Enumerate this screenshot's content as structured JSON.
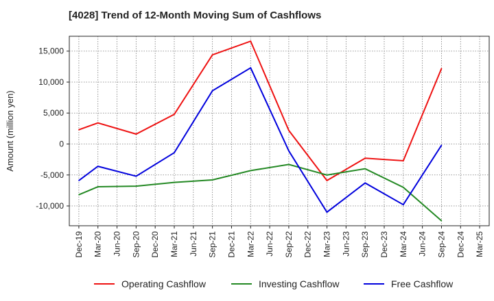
{
  "chart_data": {
    "type": "line",
    "title": "[4028]  Trend of 12-Month Moving Sum of Cashflows",
    "xlabel": "",
    "ylabel": "Amount (million yen)",
    "x": [
      "Dec-19",
      "Mar-20",
      "Jun-20",
      "Sep-20",
      "Dec-20",
      "Mar-21",
      "Jun-21",
      "Sep-21",
      "Dec-21",
      "Mar-22",
      "Jun-22",
      "Sep-22",
      "Dec-22",
      "Mar-23",
      "Jun-23",
      "Sep-23",
      "Dec-23",
      "Mar-24",
      "Jun-24",
      "Sep-24",
      "Dec-24",
      "Mar-25"
    ],
    "ylim": [
      -13200,
      17400
    ],
    "yticks": [
      -10000,
      -5000,
      0,
      5000,
      10000,
      15000
    ],
    "ytick_labels": [
      "-10,000",
      "-5,000",
      "0",
      "5,000",
      "10,000",
      "15,000"
    ],
    "grid": true,
    "legend_position": "bottom",
    "series": [
      {
        "name": "Operating Cashflow",
        "color": "#ee1111",
        "values": [
          2300,
          3400,
          null,
          1600,
          null,
          4800,
          null,
          14400,
          null,
          16600,
          null,
          2200,
          null,
          -5900,
          null,
          -2300,
          null,
          -2700,
          null,
          12200,
          null,
          null
        ]
      },
      {
        "name": "Investing Cashflow",
        "color": "#228822",
        "values": [
          -8200,
          -6900,
          null,
          -6800,
          null,
          -6200,
          null,
          -5800,
          null,
          -4300,
          null,
          -3300,
          null,
          -5000,
          null,
          -4000,
          null,
          -7000,
          null,
          -12400,
          null,
          null
        ]
      },
      {
        "name": "Free Cashflow",
        "color": "#0000dd",
        "values": [
          -5900,
          -3600,
          null,
          -5200,
          null,
          -1400,
          null,
          8600,
          null,
          12300,
          null,
          -1100,
          null,
          -11000,
          null,
          -6300,
          null,
          -9800,
          null,
          -200,
          null,
          null
        ]
      }
    ]
  }
}
